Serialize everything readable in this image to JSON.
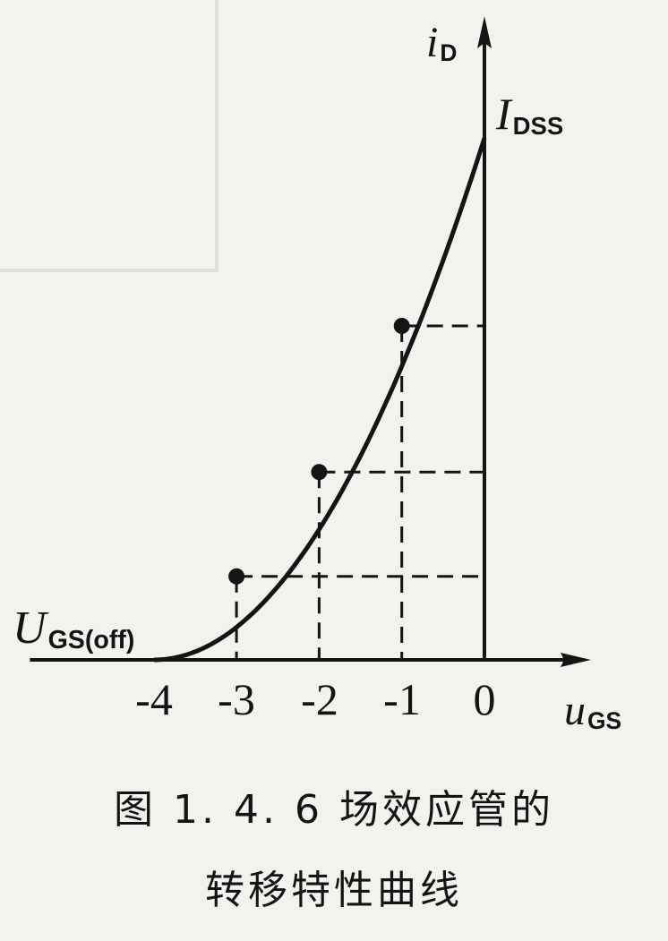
{
  "chart_data": {
    "type": "line",
    "x": [
      -4,
      -3,
      -2,
      -1,
      0
    ],
    "y": [
      0,
      0.25,
      0.5625,
      1,
      1.5625
    ],
    "marked_points": [
      {
        "x": -3,
        "y": 0.25
      },
      {
        "x": -2,
        "y": 0.5625
      },
      {
        "x": -1,
        "y": 1
      }
    ],
    "xticks": [
      "-4",
      "-3",
      "-2",
      "-1",
      "0"
    ],
    "xlim": [
      -5.5,
      1.05
    ],
    "ylim": [
      0,
      1.72
    ],
    "grid": "dashed guide lines from marked points to axes",
    "xlabel": {
      "main": "u",
      "sub": "GS"
    },
    "ylabel": {
      "main": "i",
      "sub": "D"
    },
    "annotations": {
      "idss": {
        "main": "I",
        "sub": "DSS"
      },
      "ugsoff": {
        "main": "U",
        "sub": "GS(off)"
      }
    },
    "caption_line1": "图 1. 4. 6   场效应管的",
    "caption_line2": "转移特性曲线"
  },
  "colors": {
    "ink": "#141414",
    "paper": "#f3f2ee"
  }
}
